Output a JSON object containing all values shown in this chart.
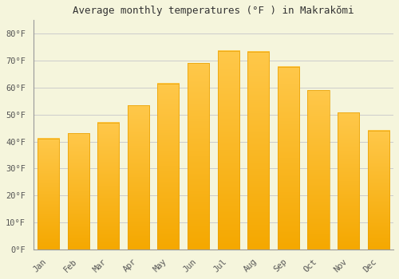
{
  "months": [
    "Jan",
    "Feb",
    "Mar",
    "Apr",
    "May",
    "Jun",
    "Jul",
    "Aug",
    "Sep",
    "Oct",
    "Nov",
    "Dec"
  ],
  "values": [
    41.2,
    43.0,
    47.0,
    53.4,
    61.5,
    69.1,
    73.6,
    73.4,
    67.8,
    59.0,
    50.7,
    44.1
  ],
  "bar_color_top": "#FFC84A",
  "bar_color_bottom": "#F5A800",
  "bar_edge_color": "#E8A000",
  "background_color": "#F5F5DC",
  "grid_color": "#CCCCCC",
  "title": "Average monthly temperatures (°F ) in Makrakŏmi",
  "ylabel_ticks": [
    "0°F",
    "10°F",
    "20°F",
    "30°F",
    "40°F",
    "50°F",
    "60°F",
    "70°F",
    "80°F"
  ],
  "ytick_values": [
    0,
    10,
    20,
    30,
    40,
    50,
    60,
    70,
    80
  ],
  "ylim": [
    0,
    85
  ],
  "title_fontsize": 9,
  "tick_fontsize": 7.5,
  "font_family": "monospace"
}
